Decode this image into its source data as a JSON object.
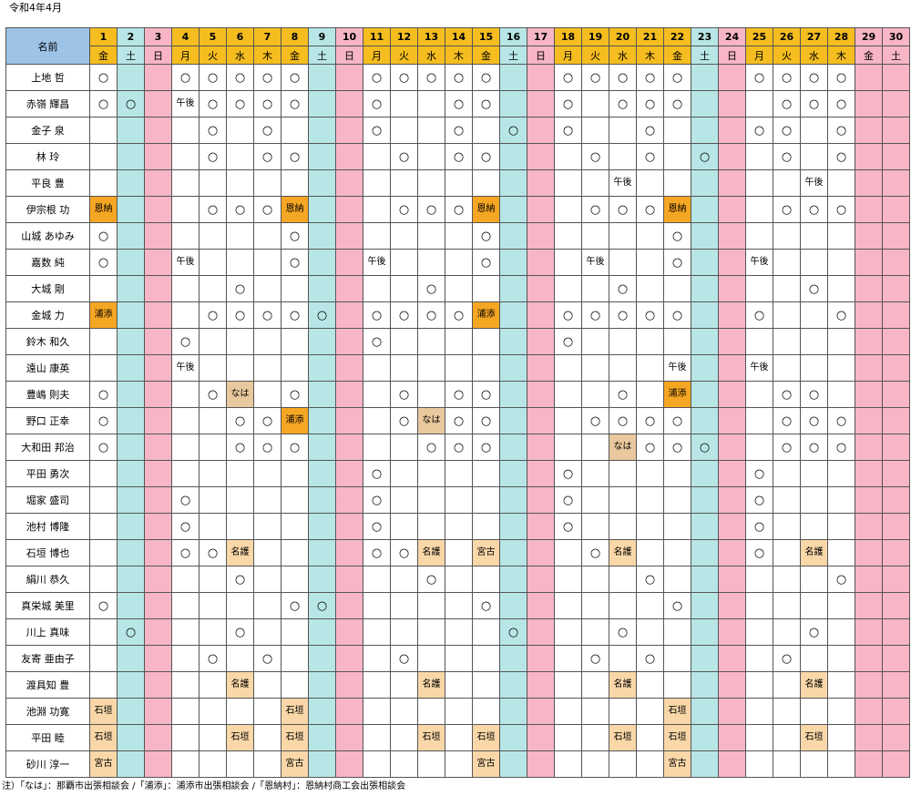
{
  "title": "令和4年4月",
  "header": {
    "name_label": "名前",
    "days": [
      "1",
      "2",
      "3",
      "4",
      "5",
      "6",
      "7",
      "8",
      "9",
      "10",
      "11",
      "12",
      "13",
      "14",
      "15",
      "16",
      "17",
      "18",
      "19",
      "20",
      "21",
      "22",
      "23",
      "24",
      "25",
      "26",
      "27",
      "28",
      "29",
      "30"
    ],
    "weekdays": [
      "金",
      "土",
      "日",
      "月",
      "火",
      "水",
      "木",
      "金",
      "土",
      "日",
      "月",
      "火",
      "水",
      "木",
      "金",
      "土",
      "日",
      "月",
      "火",
      "水",
      "木",
      "金",
      "土",
      "日",
      "月",
      "火",
      "水",
      "木",
      "金",
      "土"
    ]
  },
  "colors": {
    "day_header": "#f5bd1f",
    "saturday": "#b8e6e6",
    "sunday_holiday": "#f7b5c6",
    "name_header": "#9dc3e6",
    "urasoe": "#f5a623",
    "onna": "#f5a623",
    "naha": "#e8c89c",
    "nago": "#f9d7a8",
    "ishigaki": "#f9d7a8",
    "miyako": "#f9d7a8"
  },
  "sat_cols": [
    2,
    9,
    16,
    23
  ],
  "sun_cols": [
    3,
    10,
    17,
    24,
    29,
    30
  ],
  "tag_classes": {
    "恩納": "t-onna",
    "浦添": "t-urasoe",
    "なは": "t-naha",
    "名護": "t-nago",
    "石垣": "t-ishigaki",
    "宮古": "t-miyako"
  },
  "rows": [
    {
      "name": "上地 哲",
      "cells": {
        "1": "○",
        "4": "○",
        "5": "○",
        "6": "○",
        "7": "○",
        "8": "○",
        "11": "○",
        "12": "○",
        "13": "○",
        "14": "○",
        "15": "○",
        "18": "○",
        "19": "○",
        "20": "○",
        "21": "○",
        "22": "○",
        "25": "○",
        "26": "○",
        "27": "○",
        "28": "○"
      }
    },
    {
      "name": "赤嶺 輝昌",
      "cells": {
        "1": "○",
        "2": "○",
        "4": "午後",
        "5": "○",
        "6": "○",
        "7": "○",
        "8": "○",
        "11": "○",
        "14": "○",
        "15": "○",
        "18": "○",
        "20": "○",
        "21": "○",
        "22": "○",
        "26": "○",
        "27": "○",
        "28": "○"
      }
    },
    {
      "name": "金子 泉",
      "cells": {
        "5": "○",
        "7": "○",
        "11": "○",
        "14": "○",
        "16": "○",
        "18": "○",
        "21": "○",
        "25": "○",
        "26": "○",
        "28": "○"
      }
    },
    {
      "name": "林 玲",
      "cells": {
        "5": "○",
        "7": "○",
        "8": "○",
        "12": "○",
        "14": "○",
        "15": "○",
        "19": "○",
        "21": "○",
        "23": "○",
        "26": "○",
        "28": "○"
      }
    },
    {
      "name": "平良 豊",
      "cells": {
        "20": "午後",
        "27": "午後"
      }
    },
    {
      "name": "伊宗根 功",
      "cells": {
        "1": "恩納",
        "5": "○",
        "6": "○",
        "7": "○",
        "8": "恩納",
        "12": "○",
        "13": "○",
        "14": "○",
        "15": "恩納",
        "19": "○",
        "20": "○",
        "21": "○",
        "22": "恩納",
        "26": "○",
        "27": "○",
        "28": "○"
      }
    },
    {
      "name": "山城 あゆみ",
      "cells": {
        "1": "○",
        "8": "○",
        "15": "○",
        "22": "○"
      }
    },
    {
      "name": "嘉数 純",
      "cells": {
        "1": "○",
        "4": "午後",
        "8": "○",
        "11": "午後",
        "15": "○",
        "19": "午後",
        "22": "○",
        "25": "午後"
      }
    },
    {
      "name": "大城 剛",
      "cells": {
        "6": "○",
        "13": "○",
        "20": "○",
        "27": "○"
      }
    },
    {
      "name": "金城 力",
      "cells": {
        "1": "浦添",
        "5": "○",
        "6": "○",
        "7": "○",
        "8": "○",
        "9": "○",
        "11": "○",
        "12": "○",
        "13": "○",
        "14": "○",
        "15": "浦添",
        "18": "○",
        "19": "○",
        "20": "○",
        "21": "○",
        "22": "○",
        "25": "○",
        "28": "○"
      }
    },
    {
      "name": "鈴木 和久",
      "cells": {
        "4": "○",
        "11": "○",
        "18": "○"
      }
    },
    {
      "name": "遠山 康英",
      "cells": {
        "4": "午後",
        "22": "午後",
        "25": "午後"
      }
    },
    {
      "name": "豊嶋 則夫",
      "cells": {
        "1": "○",
        "5": "○",
        "6": "なは",
        "8": "○",
        "12": "○",
        "14": "○",
        "15": "○",
        "20": "○",
        "22": "浦添",
        "26": "○",
        "27": "○"
      }
    },
    {
      "name": "野口 正幸",
      "cells": {
        "1": "○",
        "6": "○",
        "7": "○",
        "8": "浦添",
        "12": "○",
        "13": "なは",
        "14": "○",
        "15": "○",
        "19": "○",
        "20": "○",
        "21": "○",
        "22": "○",
        "26": "○",
        "27": "○",
        "28": "○"
      }
    },
    {
      "name": "大和田 邦治",
      "cells": {
        "1": "○",
        "6": "○",
        "7": "○",
        "8": "○",
        "13": "○",
        "14": "○",
        "15": "○",
        "20": "なは",
        "21": "○",
        "22": "○",
        "23": "○",
        "26": "○",
        "27": "○",
        "28": "○"
      }
    },
    {
      "name": "平田 勇次",
      "cells": {
        "11": "○",
        "18": "○",
        "25": "○"
      }
    },
    {
      "name": "堀家 盛司",
      "cells": {
        "4": "○",
        "11": "○",
        "18": "○",
        "25": "○"
      }
    },
    {
      "name": "池村 博隆",
      "cells": {
        "4": "○",
        "11": "○",
        "18": "○",
        "25": "○"
      }
    },
    {
      "name": "石垣 博也",
      "cells": {
        "4": "○",
        "5": "○",
        "6": "名護",
        "11": "○",
        "12": "○",
        "13": "名護",
        "15": "宮古",
        "19": "○",
        "20": "名護",
        "25": "○",
        "27": "名護"
      }
    },
    {
      "name": "絹川 恭久",
      "cells": {
        "6": "○",
        "13": "○",
        "21": "○",
        "28": "○"
      }
    },
    {
      "name": "真栄城 美里",
      "cells": {
        "1": "○",
        "8": "○",
        "9": "○",
        "15": "○",
        "22": "○"
      }
    },
    {
      "name": "川上 真味",
      "cells": {
        "2": "○",
        "6": "○",
        "16": "○",
        "20": "○",
        "27": "○"
      }
    },
    {
      "name": "友寄 亜由子",
      "cells": {
        "5": "○",
        "7": "○",
        "12": "○",
        "19": "○",
        "21": "○",
        "26": "○"
      }
    },
    {
      "name": "渡具知 豊",
      "cells": {
        "6": "名護",
        "13": "名護",
        "20": "名護",
        "27": "名護"
      }
    },
    {
      "name": "池淵 功寛",
      "cells": {
        "1": "石垣",
        "8": "石垣",
        "22": "石垣"
      }
    },
    {
      "name": "平田 睦",
      "cells": {
        "1": "石垣",
        "6": "石垣",
        "8": "石垣",
        "13": "石垣",
        "15": "石垣",
        "20": "石垣",
        "22": "石垣",
        "27": "石垣"
      }
    },
    {
      "name": "砂川 淳一",
      "cells": {
        "1": "宮古",
        "8": "宮古",
        "15": "宮古",
        "22": "宮古"
      }
    }
  ],
  "note": "注）「なは」：那覇市出張相談会 /「浦添」：浦添市出張相談会 /「恩納村」：恩納村商工会出張相談会"
}
